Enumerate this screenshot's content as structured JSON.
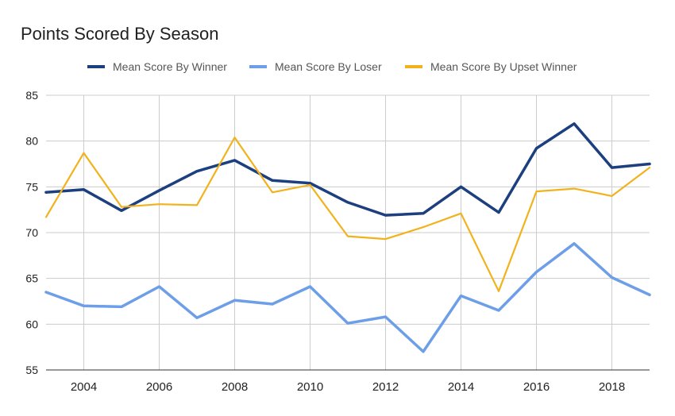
{
  "chart_data": {
    "type": "line",
    "title": "Points Scored By Season",
    "xlabel": "",
    "ylabel": "",
    "legend_position": "top",
    "grid": true,
    "x": [
      2003,
      2004,
      2005,
      2006,
      2007,
      2008,
      2009,
      2010,
      2011,
      2012,
      2013,
      2014,
      2015,
      2016,
      2017,
      2018,
      2019
    ],
    "xlim": [
      2003,
      2019
    ],
    "ylim": [
      55,
      85
    ],
    "x_ticks": [
      "2004",
      "2006",
      "2008",
      "2010",
      "2012",
      "2014",
      "2016",
      "2018"
    ],
    "y_ticks": [
      "55",
      "60",
      "65",
      "70",
      "75",
      "80",
      "85"
    ],
    "series": [
      {
        "name": "Mean Score By Winner",
        "color": "#1c3f7f",
        "values": [
          74.4,
          74.7,
          72.4,
          74.6,
          76.7,
          77.9,
          75.7,
          75.4,
          73.3,
          71.9,
          72.1,
          75.0,
          72.2,
          79.2,
          81.9,
          77.1,
          77.5
        ]
      },
      {
        "name": "Mean Score By Loser",
        "color": "#6d9ee8",
        "values": [
          63.5,
          62.0,
          61.9,
          64.1,
          60.7,
          62.6,
          62.2,
          64.1,
          60.1,
          60.8,
          57.0,
          63.1,
          61.5,
          65.7,
          68.8,
          65.1,
          63.2
        ]
      },
      {
        "name": "Mean Score By Upset Winner",
        "color": "#f2b21c",
        "values": [
          71.7,
          78.7,
          72.8,
          73.1,
          73.0,
          80.4,
          74.4,
          75.2,
          69.6,
          69.3,
          70.6,
          72.1,
          63.6,
          74.5,
          74.8,
          74.0,
          77.1
        ]
      }
    ]
  }
}
